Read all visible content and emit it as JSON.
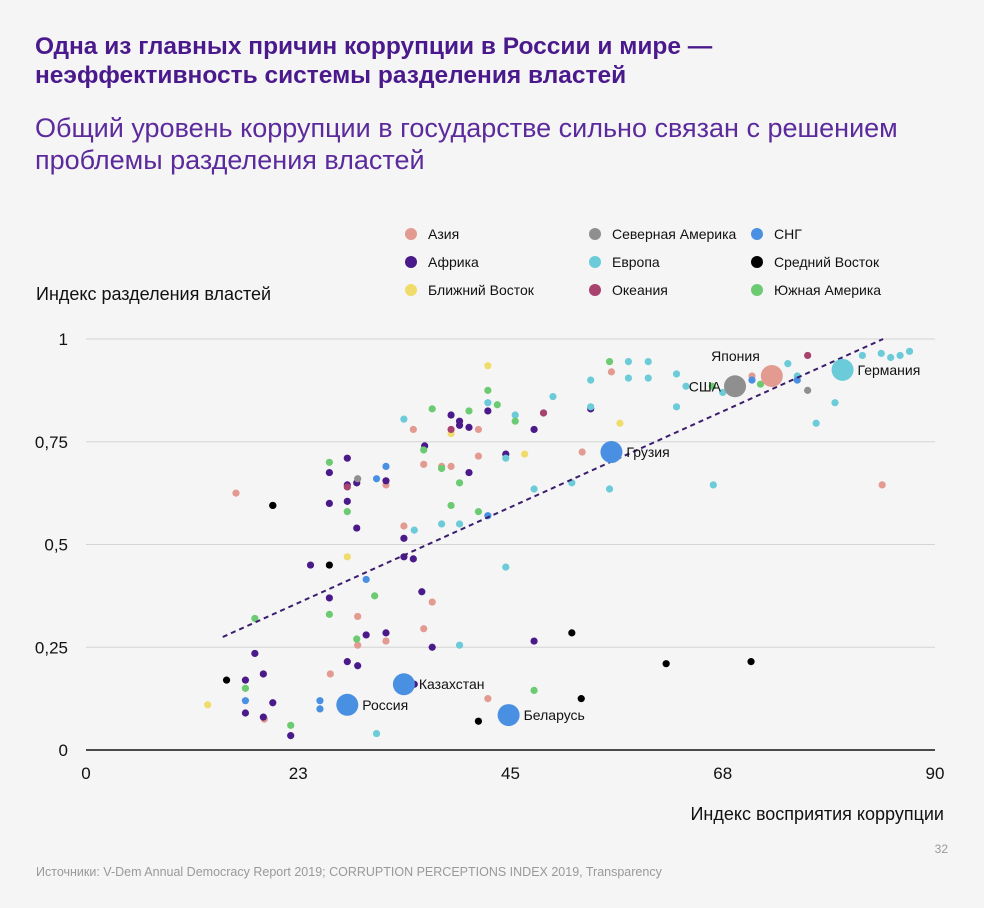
{
  "header": {
    "title": "Одна из главных причин коррупции в России и мире — неэффективность системы разделения властей",
    "subtitle": "Общий уровень коррупции в государстве сильно связан с решением проблемы разделения властей"
  },
  "footer": {
    "page_number": "32",
    "source": "Источники: V-Dem Annual Democracy Report 2019; CORRUPTION PERCEPTIONS INDEX 2019, Transparency"
  },
  "chart_data": {
    "type": "scatter",
    "title": "",
    "xlabel": "Индекс восприятия коррупции",
    "ylabel": "Индекс разделения властей",
    "xlim": [
      0,
      90
    ],
    "ylim": [
      0,
      1
    ],
    "x_ticks": [
      {
        "value": 0,
        "label": "0"
      },
      {
        "value": 22.5,
        "label": "23"
      },
      {
        "value": 45,
        "label": "45"
      },
      {
        "value": 67.5,
        "label": "68"
      },
      {
        "value": 90,
        "label": "90"
      }
    ],
    "y_ticks": [
      {
        "value": 0,
        "label": "0"
      },
      {
        "value": 0.25,
        "label": "0,25"
      },
      {
        "value": 0.5,
        "label": "0,5"
      },
      {
        "value": 0.75,
        "label": "0,75"
      },
      {
        "value": 1,
        "label": "1"
      }
    ],
    "grid": "horizontal",
    "legend_position": "top-right",
    "trendline": {
      "style": "dashed",
      "color": "#3b1d6e",
      "from": [
        14.5,
        0.275
      ],
      "to": [
        84.5,
        1.0
      ]
    },
    "legend": [
      {
        "key": "asia",
        "name": "Азия",
        "color": "#e39a90"
      },
      {
        "key": "africa",
        "name": "Африка",
        "color": "#4b1a8a"
      },
      {
        "key": "near_east",
        "name": "Ближний Восток",
        "color": "#f0dc6a"
      },
      {
        "key": "north_america",
        "name": "Северная Америка",
        "color": "#8f8f8f"
      },
      {
        "key": "europe",
        "name": "Европа",
        "color": "#6ccbd8"
      },
      {
        "key": "oceania",
        "name": "Океания",
        "color": "#a8426e"
      },
      {
        "key": "cis",
        "name": "СНГ",
        "color": "#4a90e2"
      },
      {
        "key": "middle_east",
        "name": "Средний Восток",
        "color": "#000000"
      },
      {
        "key": "south_america",
        "name": "Южная Америка",
        "color": "#6ccb72"
      }
    ],
    "highlighted": [
      {
        "name": "Япония",
        "group": "asia",
        "x": 72.7,
        "y": 0.91,
        "label_side": "top-left"
      },
      {
        "name": "США",
        "group": "north_america",
        "x": 68.8,
        "y": 0.885,
        "label_side": "left"
      },
      {
        "name": "Германия",
        "group": "europe",
        "x": 80.2,
        "y": 0.925,
        "label_side": "right"
      },
      {
        "name": "Грузия",
        "group": "cis",
        "x": 55.7,
        "y": 0.725,
        "label_side": "right"
      },
      {
        "name": "Казахстан",
        "group": "cis",
        "x": 33.7,
        "y": 0.16,
        "label_side": "right"
      },
      {
        "name": "Россия",
        "group": "cis",
        "x": 27.7,
        "y": 0.11,
        "label_side": "right"
      },
      {
        "name": "Беларусь",
        "group": "cis",
        "x": 44.8,
        "y": 0.085,
        "label_side": "right"
      }
    ],
    "series": [
      {
        "group": "asia",
        "points": [
          [
            15.9,
            0.625
          ],
          [
            18.9,
            0.075
          ],
          [
            25.9,
            0.185
          ],
          [
            28.8,
            0.325
          ],
          [
            33.7,
            0.545
          ],
          [
            31.8,
            0.645
          ],
          [
            35.8,
            0.695
          ],
          [
            37.7,
            0.69
          ],
          [
            38.7,
            0.69
          ],
          [
            41.6,
            0.715
          ],
          [
            42.6,
            0.125
          ],
          [
            35.8,
            0.295
          ],
          [
            36.7,
            0.36
          ],
          [
            31.8,
            0.265
          ],
          [
            28.8,
            0.255
          ],
          [
            52.6,
            0.725
          ],
          [
            55.7,
            0.92
          ],
          [
            41.6,
            0.78
          ],
          [
            34.7,
            0.78
          ],
          [
            70.6,
            0.91
          ],
          [
            84.4,
            0.645
          ]
        ]
      },
      {
        "group": "africa",
        "points": [
          [
            19.8,
            0.595
          ],
          [
            23.8,
            0.45
          ],
          [
            25.8,
            0.6
          ],
          [
            25.8,
            0.675
          ],
          [
            27.7,
            0.71
          ],
          [
            27.7,
            0.605
          ],
          [
            27.7,
            0.645
          ],
          [
            28.7,
            0.54
          ],
          [
            25.8,
            0.37
          ],
          [
            17.9,
            0.235
          ],
          [
            16.9,
            0.17
          ],
          [
            16.9,
            0.09
          ],
          [
            18.8,
            0.185
          ],
          [
            19.8,
            0.115
          ],
          [
            18.8,
            0.08
          ],
          [
            21.7,
            0.035
          ],
          [
            27.7,
            0.215
          ],
          [
            28.8,
            0.205
          ],
          [
            31.8,
            0.285
          ],
          [
            29.7,
            0.28
          ],
          [
            28.7,
            0.65
          ],
          [
            31.8,
            0.655
          ],
          [
            33.7,
            0.515
          ],
          [
            33.7,
            0.47
          ],
          [
            34.7,
            0.465
          ],
          [
            35.6,
            0.385
          ],
          [
            35.9,
            0.74
          ],
          [
            36.7,
            0.25
          ],
          [
            38.7,
            0.815
          ],
          [
            39.6,
            0.79
          ],
          [
            39.6,
            0.8
          ],
          [
            40.6,
            0.785
          ],
          [
            40.6,
            0.675
          ],
          [
            42.6,
            0.825
          ],
          [
            44.5,
            0.72
          ],
          [
            47.5,
            0.78
          ],
          [
            53.5,
            0.83
          ],
          [
            47.5,
            0.265
          ],
          [
            34.8,
            0.16
          ]
        ]
      },
      {
        "group": "near_east",
        "points": [
          [
            12.9,
            0.11
          ],
          [
            27.7,
            0.47
          ],
          [
            38.7,
            0.77
          ],
          [
            42.6,
            0.935
          ],
          [
            46.5,
            0.72
          ],
          [
            56.6,
            0.795
          ]
        ]
      },
      {
        "group": "north_america",
        "points": [
          [
            28.8,
            0.66
          ],
          [
            76.5,
            0.875
          ]
        ]
      },
      {
        "group": "europe",
        "points": [
          [
            30.8,
            0.04
          ],
          [
            33.7,
            0.805
          ],
          [
            34.8,
            0.535
          ],
          [
            37.7,
            0.55
          ],
          [
            39.6,
            0.255
          ],
          [
            39.6,
            0.55
          ],
          [
            42.6,
            0.845
          ],
          [
            44.5,
            0.71
          ],
          [
            44.5,
            0.445
          ],
          [
            45.5,
            0.815
          ],
          [
            47.5,
            0.635
          ],
          [
            48.5,
            0.82
          ],
          [
            49.5,
            0.86
          ],
          [
            51.5,
            0.65
          ],
          [
            53.5,
            0.835
          ],
          [
            53.5,
            0.9
          ],
          [
            55.5,
            0.635
          ],
          [
            57.5,
            0.945
          ],
          [
            57.5,
            0.905
          ],
          [
            59.6,
            0.945
          ],
          [
            59.6,
            0.905
          ],
          [
            62.6,
            0.835
          ],
          [
            62.6,
            0.915
          ],
          [
            63.6,
            0.885
          ],
          [
            66.5,
            0.645
          ],
          [
            74.4,
            0.94
          ],
          [
            75.4,
            0.91
          ],
          [
            77.4,
            0.795
          ],
          [
            79.4,
            0.845
          ],
          [
            80.3,
            0.93
          ],
          [
            82.3,
            0.96
          ],
          [
            84.3,
            0.965
          ],
          [
            85.3,
            0.955
          ],
          [
            86.3,
            0.96
          ],
          [
            87.3,
            0.97
          ],
          [
            67.5,
            0.87
          ]
        ]
      },
      {
        "group": "oceania",
        "points": [
          [
            38.7,
            0.78
          ],
          [
            48.5,
            0.82
          ],
          [
            76.5,
            0.96
          ],
          [
            27.7,
            0.64
          ]
        ]
      },
      {
        "group": "cis",
        "points": [
          [
            16.9,
            0.12
          ],
          [
            24.8,
            0.12
          ],
          [
            24.8,
            0.1
          ],
          [
            29.7,
            0.415
          ],
          [
            30.8,
            0.66
          ],
          [
            31.8,
            0.69
          ],
          [
            42.6,
            0.57
          ],
          [
            75.4,
            0.9
          ],
          [
            70.6,
            0.9
          ]
        ]
      },
      {
        "group": "middle_east",
        "points": [
          [
            14.9,
            0.17
          ],
          [
            19.8,
            0.595
          ],
          [
            25.8,
            0.45
          ],
          [
            41.6,
            0.07
          ],
          [
            51.5,
            0.285
          ],
          [
            52.5,
            0.125
          ],
          [
            61.5,
            0.21
          ],
          [
            70.5,
            0.215
          ]
        ]
      },
      {
        "group": "south_america",
        "points": [
          [
            16.9,
            0.15
          ],
          [
            17.9,
            0.32
          ],
          [
            21.7,
            0.06
          ],
          [
            25.8,
            0.33
          ],
          [
            25.8,
            0.7
          ],
          [
            27.7,
            0.58
          ],
          [
            28.7,
            0.27
          ],
          [
            30.6,
            0.375
          ],
          [
            35.8,
            0.73
          ],
          [
            36.7,
            0.83
          ],
          [
            37.7,
            0.685
          ],
          [
            38.7,
            0.595
          ],
          [
            39.6,
            0.65
          ],
          [
            40.6,
            0.825
          ],
          [
            41.6,
            0.58
          ],
          [
            42.6,
            0.875
          ],
          [
            43.6,
            0.84
          ],
          [
            45.5,
            0.8
          ],
          [
            47.5,
            0.145
          ],
          [
            55.5,
            0.945
          ],
          [
            66.4,
            0.885
          ],
          [
            68.4,
            0.885
          ],
          [
            71.5,
            0.89
          ]
        ]
      }
    ]
  }
}
